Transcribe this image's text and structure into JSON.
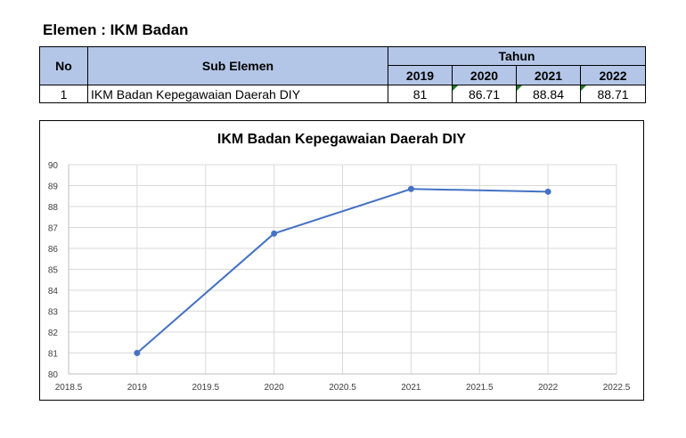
{
  "heading": "Elemen : IKM Badan",
  "table": {
    "headers": {
      "no": "No",
      "sub": "Sub Elemen",
      "tahun": "Tahun"
    },
    "years": [
      "2019",
      "2020",
      "2021",
      "2022"
    ],
    "rows": [
      {
        "no": "1",
        "sub": "IKM Badan Kepegawaian Daerah DIY",
        "values": [
          "81",
          "86.71",
          "88.84",
          "88.71"
        ]
      }
    ]
  },
  "chart_data": {
    "type": "scatter",
    "title": "IKM Badan Kepegawaian Daerah DIY",
    "xlabel": "",
    "ylabel": "",
    "xlim": [
      2018.5,
      2022.5
    ],
    "ylim": [
      80,
      90
    ],
    "x_ticks": [
      "2018.5",
      "2019",
      "2019.5",
      "2020",
      "2020.5",
      "2021",
      "2021.5",
      "2022",
      "2022.5"
    ],
    "y_ticks": [
      "80",
      "81",
      "82",
      "83",
      "84",
      "85",
      "86",
      "87",
      "88",
      "89",
      "90"
    ],
    "grid": true,
    "series": [
      {
        "x": [
          2019,
          2020,
          2021,
          2022
        ],
        "y": [
          81,
          86.71,
          88.84,
          88.71
        ],
        "color": "#4472c4"
      }
    ]
  }
}
